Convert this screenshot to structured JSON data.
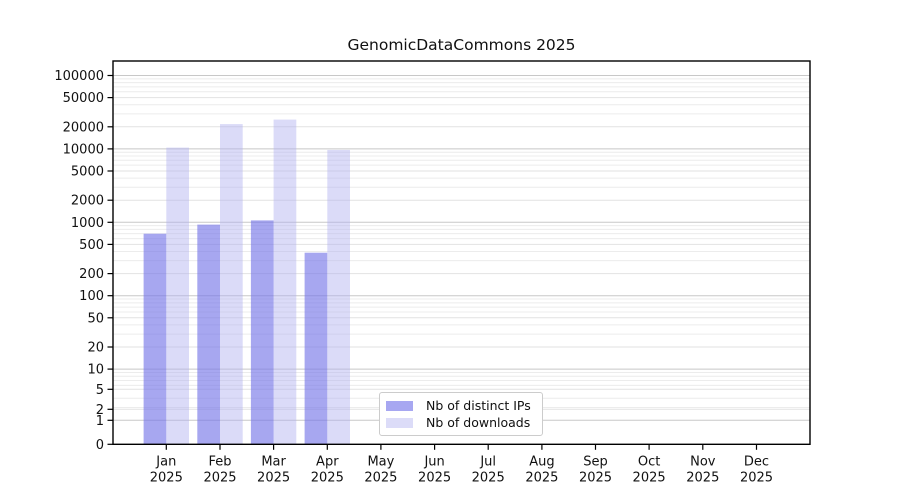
{
  "title": "GenomicDataCommons 2025",
  "legend": {
    "items": [
      {
        "label": "Nb of distinct IPs",
        "swatch_color": "#a7a7f1"
      },
      {
        "label": "Nb of downloads",
        "swatch_color": "#dcdcf8"
      }
    ]
  },
  "chart_data": {
    "type": "bar",
    "title": "GenomicDataCommons 2025",
    "categories": [
      "Jan",
      "Feb",
      "Mar",
      "Apr",
      "May",
      "Jun",
      "Jul",
      "Aug",
      "Sep",
      "Oct",
      "Nov",
      "Dec"
    ],
    "year": "2025",
    "series": [
      {
        "name": "Nb of distinct IPs",
        "fill": "#7878e8",
        "fill_opacity": 0.65,
        "legend_color": "#a7a7f1",
        "values": [
          700,
          930,
          1060,
          385,
          null,
          null,
          null,
          null,
          null,
          null,
          null,
          null
        ]
      },
      {
        "name": "Nb of downloads",
        "fill": "#b0b0f0",
        "fill_opacity": 0.45,
        "legend_color": "#dcdcf8",
        "values": [
          10400,
          21800,
          25100,
          9700,
          null,
          null,
          null,
          null,
          null,
          null,
          null,
          null
        ]
      }
    ],
    "yticks": [
      0,
      1,
      2,
      5,
      10,
      20,
      50,
      100,
      200,
      500,
      1000,
      2000,
      5000,
      10000,
      20000,
      50000,
      100000
    ],
    "yscale": "symlog",
    "ylim": [
      0,
      150000
    ],
    "xlabel": "",
    "ylabel": "",
    "grid": "both",
    "legend_position": "inside lower-center",
    "colors": {
      "axis": "#000000",
      "tick_label": "#111111",
      "grid_major": "#c8c8c8",
      "grid_labeled_minor": "#e2e2e2",
      "grid_log_minor": "#ececec"
    }
  }
}
